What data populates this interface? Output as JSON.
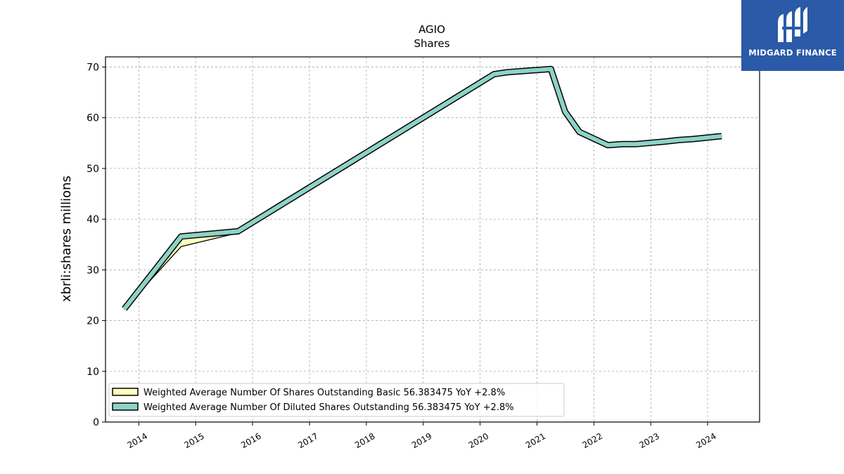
{
  "chart_data": {
    "type": "line",
    "title": "AGIO",
    "subtitle": "Shares",
    "ylabel": "xbrli:shares millions",
    "xlabel": "",
    "x_ticks": [
      "2014",
      "2015",
      "2016",
      "2017",
      "2018",
      "2019",
      "2020",
      "2021",
      "2022",
      "2023",
      "2024"
    ],
    "x_range": [
      "2013-06-01",
      "2024-11-30"
    ],
    "y_ticks": [
      0,
      10,
      20,
      30,
      40,
      50,
      60,
      70
    ],
    "ylim": [
      0,
      72
    ],
    "grid": true,
    "legend_position": "lower-left",
    "series": [
      {
        "name": "Weighted Average Number Of Shares Outstanding Basic  56.383475 YoY +2.8%",
        "color": "#ffffbf",
        "points": [
          [
            "2013-09-30",
            22.3
          ],
          [
            "2014-09-30",
            34.6
          ],
          [
            "2015-09-30",
            37.3
          ],
          [
            "2020-03-31",
            68.6
          ],
          [
            "2020-06-30",
            69.0
          ],
          [
            "2021-03-31",
            69.6
          ],
          [
            "2021-06-30",
            61.2
          ],
          [
            "2021-09-30",
            57.2
          ],
          [
            "2022-03-31",
            54.6
          ],
          [
            "2022-06-30",
            54.8
          ],
          [
            "2022-09-30",
            54.8
          ],
          [
            "2023-03-31",
            55.3
          ],
          [
            "2023-06-30",
            55.6
          ],
          [
            "2023-09-30",
            55.8
          ],
          [
            "2024-03-31",
            56.383475
          ]
        ]
      },
      {
        "name": "Weighted Average Number Of Diluted Shares Outstanding  56.383475 YoY +2.8%",
        "color": "#8dd3c7",
        "points": [
          [
            "2013-09-30",
            22.3
          ],
          [
            "2014-09-30",
            36.6
          ],
          [
            "2015-09-30",
            37.6
          ],
          [
            "2020-03-31",
            68.6
          ],
          [
            "2020-06-30",
            69.0
          ],
          [
            "2021-03-31",
            69.6
          ],
          [
            "2021-06-30",
            61.2
          ],
          [
            "2021-09-30",
            57.2
          ],
          [
            "2022-03-31",
            54.6
          ],
          [
            "2022-06-30",
            54.8
          ],
          [
            "2022-09-30",
            54.8
          ],
          [
            "2023-03-31",
            55.3
          ],
          [
            "2023-06-30",
            55.6
          ],
          [
            "2023-09-30",
            55.8
          ],
          [
            "2024-03-31",
            56.383475
          ]
        ]
      }
    ]
  },
  "logo": {
    "text": "MIDGARD FINANCE",
    "color": "#2a5aa8"
  }
}
